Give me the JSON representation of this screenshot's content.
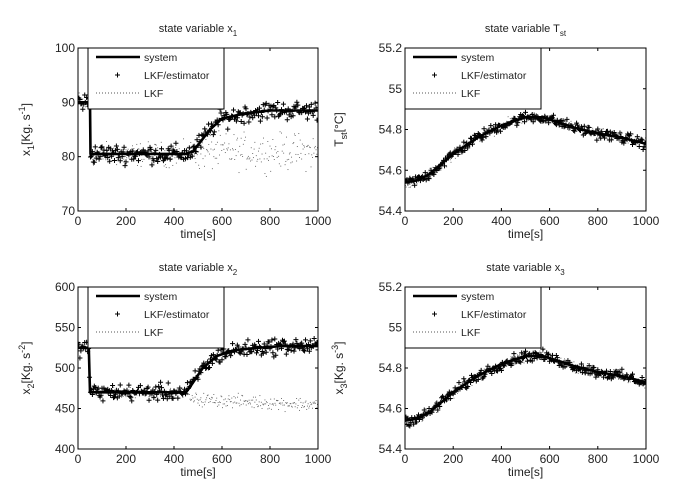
{
  "chart_data": [
    {
      "type": "line",
      "title": "state variable x",
      "title_sub": "1",
      "xlabel": "time[s]",
      "ylabel": "x",
      "ylabel_sub": "1",
      "ylabel_unit": "[Kg. s",
      "ylabel_sup": "-1",
      "ylabel_close": "]",
      "xlim": [
        0,
        1000
      ],
      "ylim": [
        70,
        100
      ],
      "xticks": [
        "0",
        "200",
        "400",
        "600",
        "800",
        "1000"
      ],
      "yticks": [
        "70",
        "80",
        "90",
        "100"
      ],
      "legend": [
        "system",
        "LKF/estimator",
        "LKF"
      ],
      "legend_position": "top-left",
      "series": [
        {
          "name": "system",
          "style": "solid",
          "x": [
            0,
            50,
            52,
            450,
            480,
            550,
            600,
            650,
            700,
            800,
            1000
          ],
          "y": [
            90,
            90,
            80.5,
            80.5,
            81,
            85,
            87,
            87.5,
            88,
            88.5,
            88.5
          ]
        },
        {
          "name": "LKF/estimator",
          "style": "plus",
          "x": [
            0,
            1000
          ],
          "base": "system",
          "noise": 2.5
        },
        {
          "name": "LKF",
          "style": "dotted",
          "x": [
            0,
            50,
            52,
            450,
            480,
            1000
          ],
          "y": [
            90,
            90,
            80.5,
            80.5,
            81,
            81
          ],
          "noise": 4
        }
      ]
    },
    {
      "type": "line",
      "title": "state variable T",
      "title_sub": "st",
      "xlabel": "time[s]",
      "ylabel": "T",
      "ylabel_sub": "st",
      "ylabel_unit": "[°C]",
      "ylabel_sup": "",
      "ylabel_close": "",
      "xlim": [
        0,
        1000
      ],
      "ylim": [
        54.4,
        55.2
      ],
      "xticks": [
        "0",
        "200",
        "400",
        "600",
        "800",
        "1000"
      ],
      "yticks": [
        "54.4",
        "54.6",
        "54.8",
        "55",
        "55.2"
      ],
      "legend": [
        "system",
        "LKF/estimator",
        "LKF"
      ],
      "legend_position": "top-left",
      "series": [
        {
          "name": "system",
          "style": "solid",
          "x": [
            0,
            50,
            100,
            200,
            300,
            400,
            500,
            570,
            650,
            700,
            800,
            900,
            1000
          ],
          "y": [
            54.54,
            54.55,
            54.58,
            54.68,
            54.76,
            54.82,
            54.86,
            54.86,
            54.83,
            54.81,
            54.78,
            54.76,
            54.73
          ]
        },
        {
          "name": "LKF/estimator",
          "style": "plus",
          "x": [
            0,
            1000
          ],
          "base": "system",
          "noise": 0.04
        },
        {
          "name": "LKF",
          "style": "dotted",
          "x": [
            0,
            1000
          ],
          "base": "system",
          "noise": 0.05
        }
      ]
    },
    {
      "type": "line",
      "title": "state variable x",
      "title_sub": "2",
      "xlabel": "time[s]",
      "ylabel": "x",
      "ylabel_sub": "2",
      "ylabel_unit": "[Kg. s",
      "ylabel_sup": "-2",
      "ylabel_close": "]",
      "xlim": [
        0,
        1000
      ],
      "ylim": [
        400,
        600
      ],
      "xticks": [
        "0",
        "200",
        "400",
        "600",
        "800",
        "1000"
      ],
      "yticks": [
        "400",
        "450",
        "500",
        "550",
        "600"
      ],
      "legend": [
        "system",
        "LKF/estimator",
        "LKF"
      ],
      "legend_position": "top-left",
      "series": [
        {
          "name": "system",
          "style": "solid",
          "x": [
            0,
            45,
            50,
            450,
            470,
            520,
            580,
            650,
            750,
            850,
            1000
          ],
          "y": [
            525,
            525,
            470,
            470,
            478,
            500,
            515,
            522,
            525,
            527,
            527
          ]
        },
        {
          "name": "LKF/estimator",
          "style": "plus",
          "x": [
            0,
            1000
          ],
          "base": "system",
          "noise": 15
        },
        {
          "name": "LKF",
          "style": "dotted",
          "x": [
            0,
            45,
            50,
            450,
            470,
            1000
          ],
          "y": [
            525,
            525,
            470,
            470,
            462,
            455
          ],
          "noise": 10
        }
      ]
    },
    {
      "type": "line",
      "title": "state variable x",
      "title_sub": "3",
      "xlabel": "time[s]",
      "ylabel": "x",
      "ylabel_sub": "3",
      "ylabel_unit": "[Kg. s",
      "ylabel_sup": "-3",
      "ylabel_close": "]",
      "xlim": [
        0,
        1000
      ],
      "ylim": [
        54.4,
        55.2
      ],
      "xticks": [
        "0",
        "200",
        "400",
        "600",
        "800",
        "1000"
      ],
      "yticks": [
        "54.4",
        "54.6",
        "54.8",
        "55",
        "55.2"
      ],
      "legend": [
        "system",
        "LKF/estimator",
        "LKF"
      ],
      "legend_position": "top-left",
      "series": [
        {
          "name": "system",
          "style": "solid",
          "x": [
            0,
            50,
            100,
            200,
            300,
            400,
            500,
            570,
            650,
            700,
            800,
            900,
            1000
          ],
          "y": [
            54.54,
            54.55,
            54.58,
            54.68,
            54.76,
            54.82,
            54.86,
            54.86,
            54.83,
            54.81,
            54.78,
            54.76,
            54.73
          ]
        },
        {
          "name": "LKF/estimator",
          "style": "plus",
          "x": [
            0,
            1000
          ],
          "base": "system",
          "noise": 0.04
        },
        {
          "name": "LKF",
          "style": "dotted",
          "x": [
            0,
            1000
          ],
          "base": "system",
          "noise": 0.05
        }
      ]
    }
  ]
}
